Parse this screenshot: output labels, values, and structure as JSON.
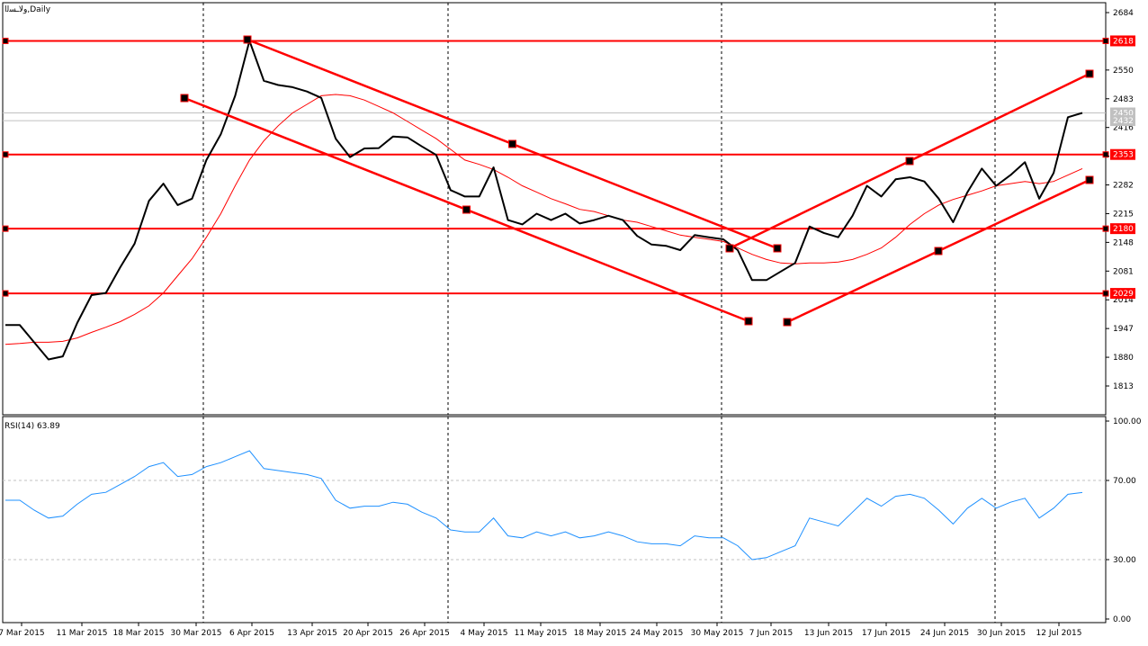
{
  "chart_data": [
    {
      "type": "line",
      "title": "وﻻـﺴﻟا,Daily",
      "x_labels": [
        "7 Mar 2015",
        "11 Mar 2015",
        "18 Mar 2015",
        "30 Mar 2015",
        "6 Apr 2015",
        "13 Apr 2015",
        "20 Apr 2015",
        "26 Apr 2015",
        "4 May 2015",
        "11 May 2015",
        "18 May 2015",
        "24 May 2015",
        "30 May 2015",
        "7 Jun 2015",
        "13 Jun 2015",
        "17 Jun 2015",
        "24 Jun 2015",
        "30 Jun 2015",
        "12 Jul 2015"
      ],
      "y_ticks": [
        "2684",
        "2550",
        "2483",
        "2416",
        "2349",
        "2282",
        "2215",
        "2148",
        "2081",
        "2014",
        "1947",
        "1880",
        "1813"
      ],
      "ylim": [
        1750,
        2684
      ],
      "price_colors": {
        "price": "#000000",
        "ma": "#ff0000",
        "levels": "#ff0000"
      },
      "series": [
        {
          "values": [
            1955,
            1955,
            1915,
            1875,
            1882,
            1960,
            2025,
            2030,
            2090,
            2145,
            2245,
            2285,
            2235,
            2250,
            2340,
            2400,
            2490,
            2618,
            2525,
            2515,
            2510,
            2500,
            2485,
            2390,
            2347,
            2367,
            2368,
            2395,
            2393,
            2372,
            2352,
            2270,
            2255,
            2255,
            2323,
            2200,
            2190,
            2215,
            2200,
            2215,
            2192,
            2200,
            2210,
            2200,
            2163,
            2143,
            2140,
            2130,
            2165,
            2160,
            2155,
            2130,
            2060,
            2060,
            2080,
            2100,
            2185,
            2170,
            2160,
            2210,
            2280,
            2255,
            2295,
            2300,
            2290,
            2250,
            2195,
            2265,
            2320,
            2280,
            2305,
            2335,
            2250,
            2310,
            2440,
            2450
          ]
        },
        {
          "values": [
            1910,
            1912,
            1915,
            1915,
            1917,
            1925,
            1938,
            1950,
            1963,
            1980,
            2000,
            2030,
            2070,
            2110,
            2160,
            2215,
            2280,
            2340,
            2385,
            2420,
            2450,
            2470,
            2490,
            2493,
            2490,
            2480,
            2465,
            2450,
            2430,
            2410,
            2390,
            2365,
            2340,
            2330,
            2318,
            2300,
            2280,
            2265,
            2250,
            2238,
            2225,
            2220,
            2210,
            2200,
            2195,
            2185,
            2175,
            2165,
            2160,
            2155,
            2150,
            2135,
            2120,
            2108,
            2100,
            2098,
            2100,
            2100,
            2102,
            2108,
            2120,
            2135,
            2160,
            2190,
            2215,
            2235,
            2248,
            2258,
            2268,
            2280,
            2285,
            2290,
            2285,
            2290,
            2305,
            2320
          ]
        }
      ],
      "horizontal_levels": [
        "2618",
        "2353",
        "2180",
        "2029"
      ],
      "current_price_labels": [
        "2450",
        "2432"
      ]
    },
    {
      "type": "line",
      "title": "RSI(14) 63.89",
      "y_ticks": [
        "100.00",
        "70.00",
        "30.00",
        "0.00"
      ],
      "ylim": [
        0,
        100
      ],
      "levels": [
        70,
        30
      ],
      "series": [
        {
          "values": [
            60,
            60,
            55,
            51,
            52,
            58,
            63,
            64,
            68,
            72,
            77,
            79,
            72,
            73,
            77,
            79,
            82,
            85,
            76,
            75,
            74,
            73,
            71,
            60,
            56,
            57,
            57,
            59,
            58,
            54,
            51,
            45,
            44,
            44,
            51,
            42,
            41,
            44,
            42,
            44,
            41,
            42,
            44,
            42,
            39,
            38,
            38,
            37,
            42,
            41,
            41,
            37,
            30,
            31,
            34,
            37,
            51,
            49,
            47,
            54,
            61,
            57,
            62,
            63,
            61,
            55,
            48,
            56,
            61,
            56,
            59,
            61,
            51,
            56,
            63,
            63.89
          ]
        }
      ]
    }
  ]
}
